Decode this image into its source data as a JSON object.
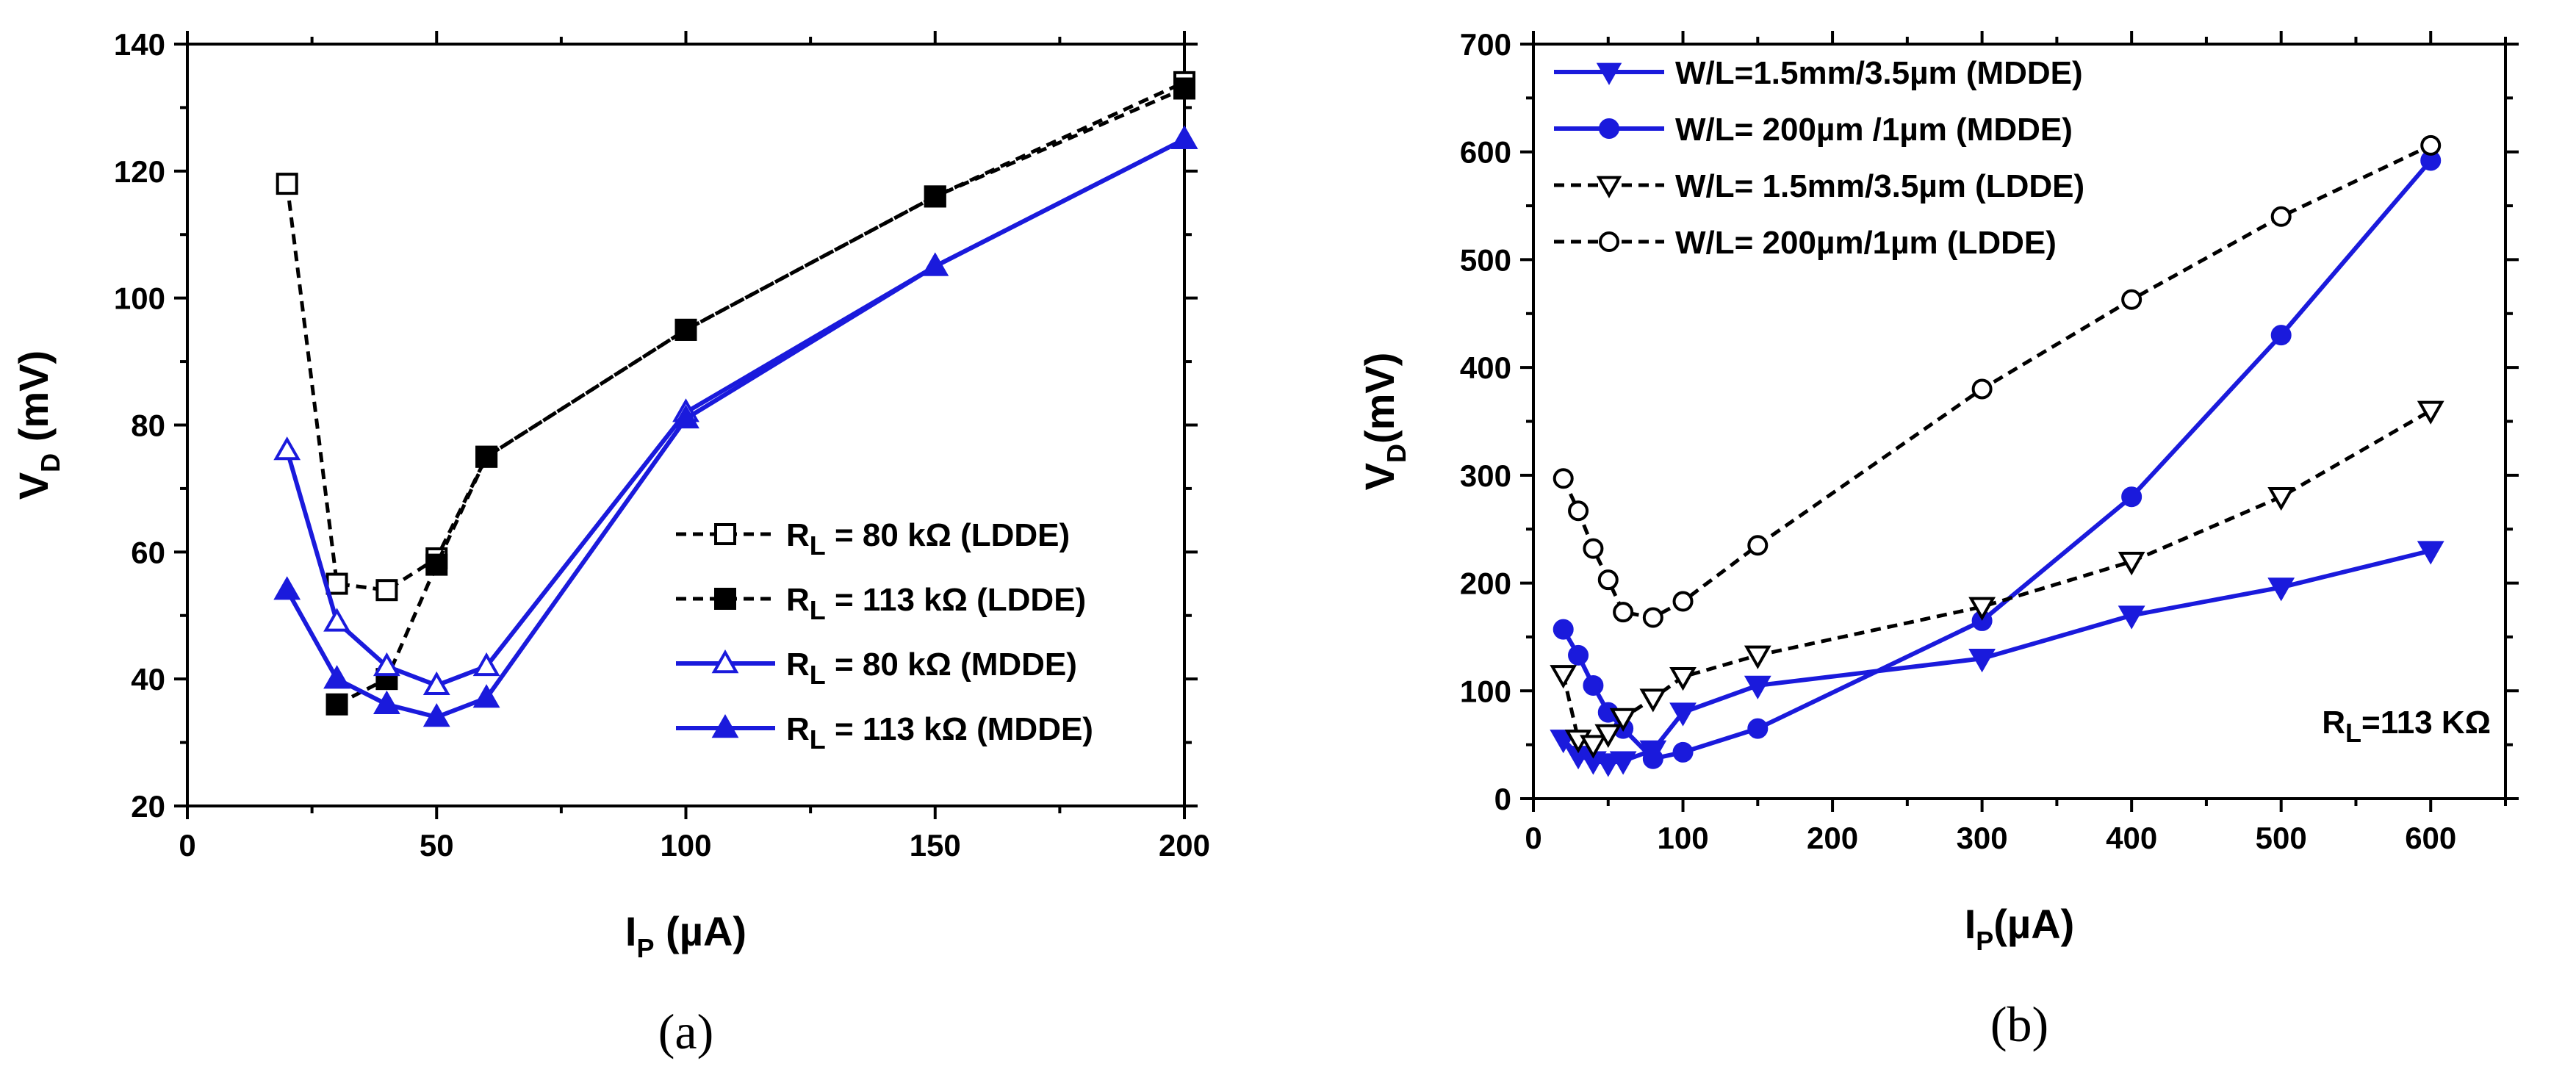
{
  "chart_data": [
    {
      "type": "line",
      "panel_label": "(a)",
      "xlabel": {
        "main": "I",
        "sub": "P",
        "rest": " (µA)"
      },
      "ylabel": {
        "main": "V",
        "sub": "D",
        "rest": " (mV)"
      },
      "xlim": [
        0,
        200
      ],
      "ylim": [
        20,
        140
      ],
      "xticks": [
        0,
        50,
        100,
        150,
        200
      ],
      "yticks": [
        20,
        40,
        60,
        80,
        100,
        120,
        140
      ],
      "legend_position": "bottom-right",
      "series": [
        {
          "name": "80 kΩ  (LDDE)",
          "label_pre": "R",
          "label_sub": "L",
          "label_post": " =  80 kΩ  (LDDE)",
          "color": "#000000",
          "dash": true,
          "marker": "square-open",
          "x": [
            20,
            30,
            40,
            50,
            60,
            100,
            150,
            200
          ],
          "y": [
            118,
            55,
            54,
            59,
            75,
            95,
            116,
            134
          ]
        },
        {
          "name": "113 kΩ (LDDE)",
          "label_pre": "R",
          "label_sub": "L",
          "label_post": " = 113 kΩ (LDDE)",
          "color": "#000000",
          "dash": true,
          "marker": "square-filled",
          "x": [
            30,
            40,
            50,
            60,
            100,
            150,
            200
          ],
          "y": [
            36,
            40,
            58,
            75,
            95,
            116,
            133
          ]
        },
        {
          "name": "80 kΩ  (MDDE)",
          "label_pre": "R",
          "label_sub": "L",
          "label_post": " =  80 kΩ  (MDDE)",
          "color": "#1a1adc",
          "dash": false,
          "marker": "triangle-up-open",
          "x": [
            20,
            30,
            40,
            50,
            60,
            100,
            150,
            200
          ],
          "y": [
            76,
            49,
            42,
            39,
            42,
            82,
            105,
            125
          ]
        },
        {
          "name": "113 kΩ (MDDE)",
          "label_pre": "R",
          "label_sub": "L",
          "label_post": " = 113 kΩ (MDDE)",
          "color": "#1a1adc",
          "dash": false,
          "marker": "triangle-up-filled",
          "x": [
            20,
            30,
            40,
            50,
            60,
            100,
            150,
            200
          ],
          "y": [
            54,
            40,
            36,
            34,
            37,
            81,
            105,
            125
          ]
        }
      ]
    },
    {
      "type": "line",
      "panel_label": "(b)",
      "xlabel": {
        "main": "I",
        "sub": "P",
        "rest": "(µA)"
      },
      "ylabel": {
        "main": "V",
        "sub": "D",
        "rest": "(mV)"
      },
      "xlim": [
        0,
        650
      ],
      "ylim": [
        0,
        700
      ],
      "xticks": [
        0,
        100,
        200,
        300,
        400,
        500,
        600
      ],
      "yticks": [
        0,
        100,
        200,
        300,
        400,
        500,
        600,
        700
      ],
      "legend_position": "top-left",
      "annotation": {
        "pre": "R",
        "sub": "L",
        "post": "=113 KΩ"
      },
      "series": [
        {
          "name": "W/L=1.5mm/3.5µm (MDDE)",
          "color": "#1a1adc",
          "dash": false,
          "marker": "triangle-down-filled",
          "x": [
            20,
            30,
            40,
            50,
            60,
            80,
            100,
            150,
            300,
            400,
            500,
            600
          ],
          "y": [
            55,
            40,
            35,
            33,
            35,
            45,
            80,
            105,
            130,
            170,
            196,
            230
          ]
        },
        {
          "name": "W/L= 200µm /1µm (MDDE)",
          "color": "#1a1adc",
          "dash": false,
          "marker": "circle-filled",
          "x": [
            20,
            30,
            40,
            50,
            60,
            80,
            100,
            150,
            300,
            400,
            500,
            600
          ],
          "y": [
            157,
            133,
            105,
            80,
            65,
            37,
            43,
            65,
            165,
            280,
            430,
            592
          ]
        },
        {
          "name": "W/L= 1.5mm/3.5µm (LDDE)",
          "color": "#000000",
          "dash": true,
          "marker": "triangle-down-open",
          "x": [
            20,
            30,
            40,
            50,
            60,
            80,
            100,
            150,
            300,
            400,
            500,
            600
          ],
          "y": [
            115,
            55,
            50,
            60,
            75,
            93,
            113,
            133,
            178,
            220,
            280,
            360
          ]
        },
        {
          "name": "W/L= 200µm/1µm (LDDE)",
          "color": "#000000",
          "dash": true,
          "marker": "circle-open",
          "x": [
            20,
            30,
            40,
            50,
            60,
            80,
            100,
            150,
            300,
            400,
            500,
            600
          ],
          "y": [
            297,
            267,
            232,
            203,
            173,
            168,
            183,
            235,
            380,
            463,
            540,
            606
          ]
        }
      ]
    }
  ]
}
